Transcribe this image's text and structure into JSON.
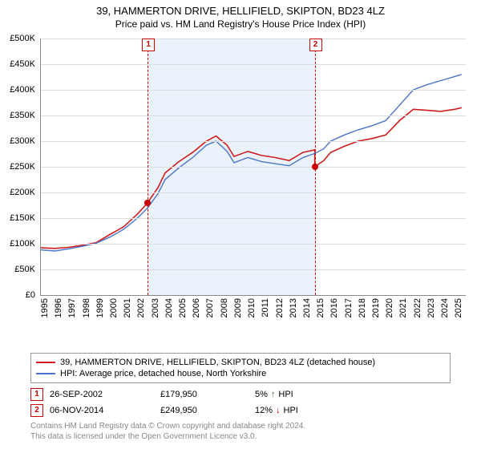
{
  "title": "39, HAMMERTON DRIVE, HELLIFIELD, SKIPTON, BD23 4LZ",
  "subtitle": "Price paid vs. HM Land Registry's House Price Index (HPI)",
  "chart": {
    "type": "line",
    "background_color": "#ffffff",
    "highlight_band_color": "#eaf3fb",
    "grid_color": "#dddddd",
    "axis_color": "#888888",
    "x_start_year": 1995,
    "x_end_year": 2025,
    "xlim": [
      1995,
      2025.8
    ],
    "ylim": [
      0,
      500000
    ],
    "ytick_step": 50000,
    "y_prefix": "£",
    "y_suffix": "K",
    "y_labels": [
      "£0",
      "£50K",
      "£100K",
      "£150K",
      "£200K",
      "£250K",
      "£300K",
      "£350K",
      "£400K",
      "£450K",
      "£500K"
    ],
    "x_labels": [
      "1995",
      "1996",
      "1997",
      "1998",
      "1999",
      "2000",
      "2001",
      "2002",
      "2003",
      "2004",
      "2005",
      "2006",
      "2007",
      "2008",
      "2009",
      "2010",
      "2011",
      "2012",
      "2013",
      "2014",
      "2015",
      "2016",
      "2017",
      "2018",
      "2019",
      "2020",
      "2021",
      "2022",
      "2023",
      "2024",
      "2025"
    ],
    "series": [
      {
        "name": "property",
        "label": "39, HAMMERTON DRIVE, HELLIFIELD, SKIPTON, BD23 4LZ (detached house)",
        "color": "#d01c1c",
        "line_width": 1.6,
        "data": [
          [
            1995.0,
            92000
          ],
          [
            1996.0,
            91000
          ],
          [
            1997.0,
            93000
          ],
          [
            1998.0,
            97000
          ],
          [
            1999.0,
            102000
          ],
          [
            2000.0,
            118000
          ],
          [
            2001.0,
            133000
          ],
          [
            2002.0,
            158000
          ],
          [
            2002.74,
            179950
          ],
          [
            2003.5,
            210000
          ],
          [
            2004.0,
            238000
          ],
          [
            2005.0,
            260000
          ],
          [
            2006.0,
            278000
          ],
          [
            2007.0,
            300000
          ],
          [
            2007.7,
            310000
          ],
          [
            2008.5,
            292000
          ],
          [
            2009.0,
            270000
          ],
          [
            2010.0,
            280000
          ],
          [
            2011.0,
            272000
          ],
          [
            2012.0,
            268000
          ],
          [
            2013.0,
            262000
          ],
          [
            2014.0,
            278000
          ],
          [
            2014.85,
            283000
          ],
          [
            2014.86,
            249950
          ],
          [
            2015.5,
            262000
          ],
          [
            2016.0,
            278000
          ],
          [
            2017.0,
            290000
          ],
          [
            2018.0,
            300000
          ],
          [
            2019.0,
            305000
          ],
          [
            2020.0,
            312000
          ],
          [
            2021.0,
            340000
          ],
          [
            2022.0,
            362000
          ],
          [
            2023.0,
            360000
          ],
          [
            2024.0,
            358000
          ],
          [
            2025.0,
            362000
          ],
          [
            2025.5,
            365000
          ]
        ]
      },
      {
        "name": "hpi",
        "label": "HPI: Average price, detached house, North Yorkshire",
        "color": "#4a74c9",
        "line_width": 1.4,
        "data": [
          [
            1995.0,
            88000
          ],
          [
            1996.0,
            86000
          ],
          [
            1997.0,
            90000
          ],
          [
            1998.0,
            95000
          ],
          [
            1999.0,
            101000
          ],
          [
            2000.0,
            113000
          ],
          [
            2001.0,
            128000
          ],
          [
            2002.0,
            150000
          ],
          [
            2002.74,
            170000
          ],
          [
            2003.5,
            198000
          ],
          [
            2004.0,
            225000
          ],
          [
            2005.0,
            248000
          ],
          [
            2006.0,
            268000
          ],
          [
            2007.0,
            292000
          ],
          [
            2007.7,
            300000
          ],
          [
            2008.5,
            280000
          ],
          [
            2009.0,
            258000
          ],
          [
            2010.0,
            268000
          ],
          [
            2011.0,
            260000
          ],
          [
            2012.0,
            256000
          ],
          [
            2013.0,
            252000
          ],
          [
            2014.0,
            268000
          ],
          [
            2014.85,
            276000
          ],
          [
            2015.5,
            285000
          ],
          [
            2016.0,
            300000
          ],
          [
            2017.0,
            312000
          ],
          [
            2018.0,
            322000
          ],
          [
            2019.0,
            330000
          ],
          [
            2020.0,
            340000
          ],
          [
            2021.0,
            370000
          ],
          [
            2022.0,
            400000
          ],
          [
            2023.0,
            410000
          ],
          [
            2024.0,
            418000
          ],
          [
            2025.0,
            426000
          ],
          [
            2025.5,
            430000
          ]
        ]
      }
    ],
    "markers": [
      {
        "id": "1",
        "year": 2002.74,
        "price": 179950
      },
      {
        "id": "2",
        "year": 2014.85,
        "price": 249950
      }
    ],
    "marker_box_color": "#cc0000",
    "marker_dot_color": "#cc0000",
    "label_fontsize": 11,
    "title_fontsize": 13,
    "subtitle_fontsize": 12
  },
  "legend": {
    "items": [
      {
        "color": "#d01c1c",
        "label": "39, HAMMERTON DRIVE, HELLIFIELD, SKIPTON, BD23 4LZ (detached house)"
      },
      {
        "color": "#4a74c9",
        "label": "HPI: Average price, detached house, North Yorkshire"
      }
    ]
  },
  "transactions": [
    {
      "id": "1",
      "date": "26-SEP-2002",
      "price": "£179,950",
      "diff_pct": "5%",
      "direction": "up",
      "vs": "HPI"
    },
    {
      "id": "2",
      "date": "06-NOV-2014",
      "price": "£249,950",
      "diff_pct": "12%",
      "direction": "down",
      "vs": "HPI"
    }
  ],
  "footer": {
    "line1": "Contains HM Land Registry data © Crown copyright and database right 2024.",
    "line2": "This data is licensed under the Open Government Licence v3.0."
  },
  "icons": {
    "up": "↑",
    "down": "↓"
  }
}
